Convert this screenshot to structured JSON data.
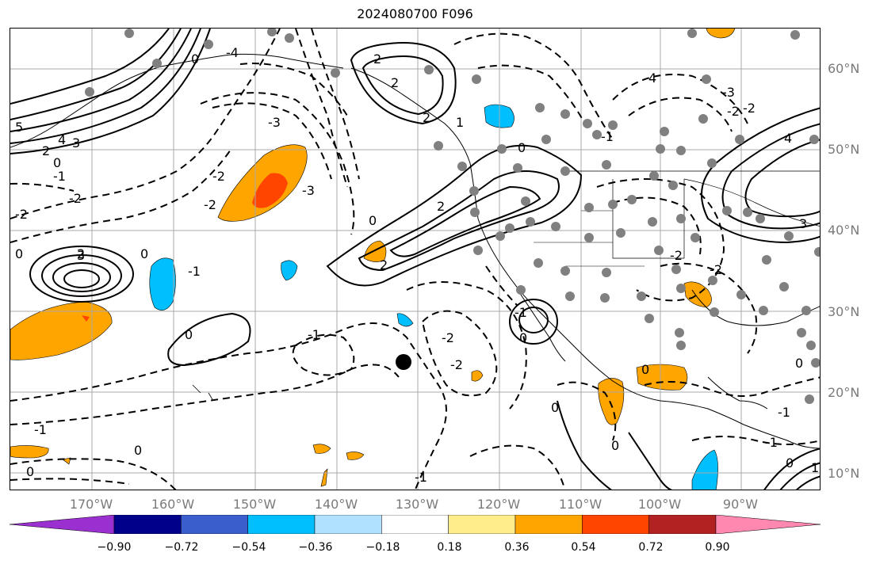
{
  "title": "2024080700 F096",
  "lat_labels": [
    "60°N",
    "50°N",
    "40°N",
    "30°N",
    "20°N",
    "10°N"
  ],
  "lon_labels": [
    "170°W",
    "160°W",
    "150°W",
    "140°W",
    "130°W",
    "120°W",
    "110°W",
    "100°W",
    "90°W"
  ],
  "contour_labels": [
    "5",
    "4",
    "3",
    "2",
    "1",
    "0",
    "-1",
    "-2",
    "-3",
    "-4"
  ],
  "colorbar": {
    "tick_labels": [
      "−0.90",
      "−0.72",
      "−0.54",
      "−0.36",
      "−0.18",
      "0.18",
      "0.36",
      "0.54",
      "0.72",
      "0.90"
    ],
    "colors": [
      "#9b30d0",
      "#00008b",
      "#3a5fcd",
      "#00bfff",
      "#b0e2ff",
      "#ffffff",
      "#ffec8b",
      "#ffa500",
      "#ff4500",
      "#b22222",
      "#ff88b0"
    ]
  },
  "colors": {
    "positive_fill": "#ffa500",
    "strong_positive_fill": "#ff4500",
    "negative_fill": "#00bfff",
    "station_dot": "#808080",
    "grid": "#a9a9a9",
    "contour": "#000000"
  },
  "storm_marker": "filled-black-circle"
}
